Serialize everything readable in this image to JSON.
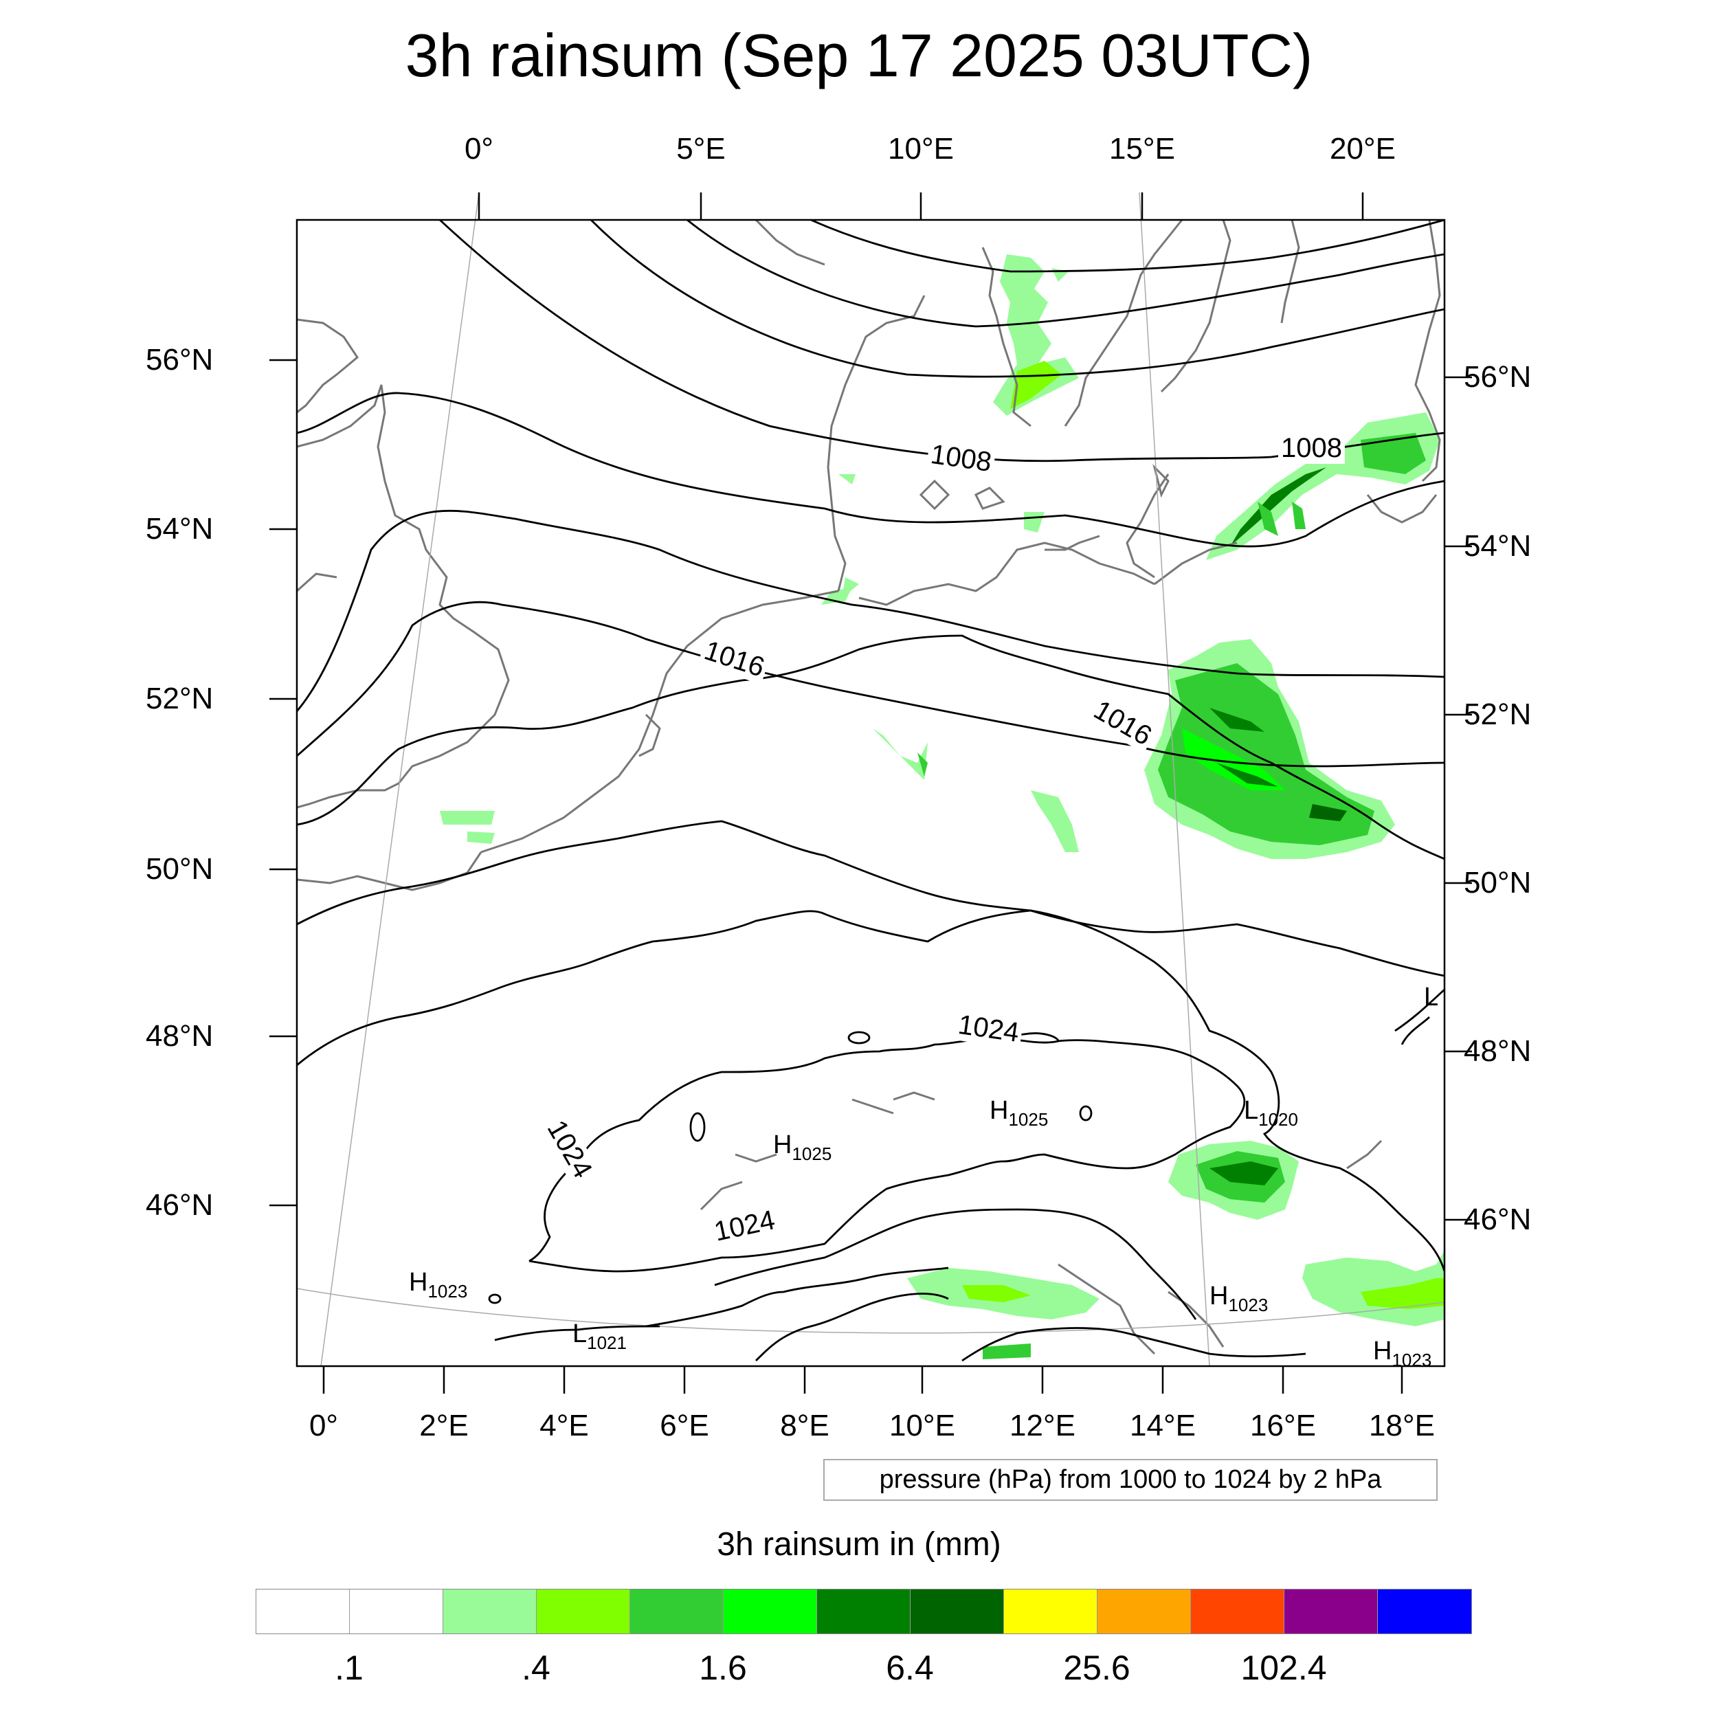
{
  "title": "3h rainsum (Sep 17 2025 03UTC)",
  "top_lon_labels": [
    "0°",
    "5°E",
    "10°E",
    "15°E",
    "20°E"
  ],
  "bottom_lon_labels": [
    "0°",
    "2°E",
    "4°E",
    "6°E",
    "8°E",
    "10°E",
    "12°E",
    "14°E",
    "16°E",
    "18°E"
  ],
  "left_lat_labels": [
    "56°N",
    "54°N",
    "52°N",
    "50°N",
    "48°N",
    "46°N"
  ],
  "right_lat_labels": [
    "56°N",
    "54°N",
    "52°N",
    "50°N",
    "48°N",
    "46°N"
  ],
  "contour_labels": {
    "c1008_a": "1008",
    "c1008_b": "1008",
    "c1016_a": "1016",
    "c1016_b": "1016",
    "c1024_a": "1024",
    "c1024_b": "1024",
    "c1024_c": "1024"
  },
  "pressure_centers": [
    {
      "letter": "H",
      "value": "1025"
    },
    {
      "letter": "H",
      "value": "1025"
    },
    {
      "letter": "L",
      "value": "1020"
    },
    {
      "letter": "H",
      "value": "1023"
    },
    {
      "letter": "H",
      "value": "1023"
    },
    {
      "letter": "L",
      "value": "1021"
    },
    {
      "letter": "H",
      "value": "1023"
    },
    {
      "letter": "L",
      "value": ""
    }
  ],
  "info_box": "pressure (hPa) from 1000 to 1024 by 2 hPa",
  "colorbar": {
    "title": "3h rainsum in (mm)",
    "colors": [
      "#ffffff",
      "#ffffff",
      "#98fb98",
      "#7fff00",
      "#32cd32",
      "#00ff00",
      "#008000",
      "#006400",
      "#ffff00",
      "#ffa500",
      "#ff4500",
      "#8b008b",
      "#0000ff"
    ],
    "tick_labels": [
      ".1",
      ".4",
      "1.6",
      "6.4",
      "25.6",
      "102.4"
    ]
  }
}
